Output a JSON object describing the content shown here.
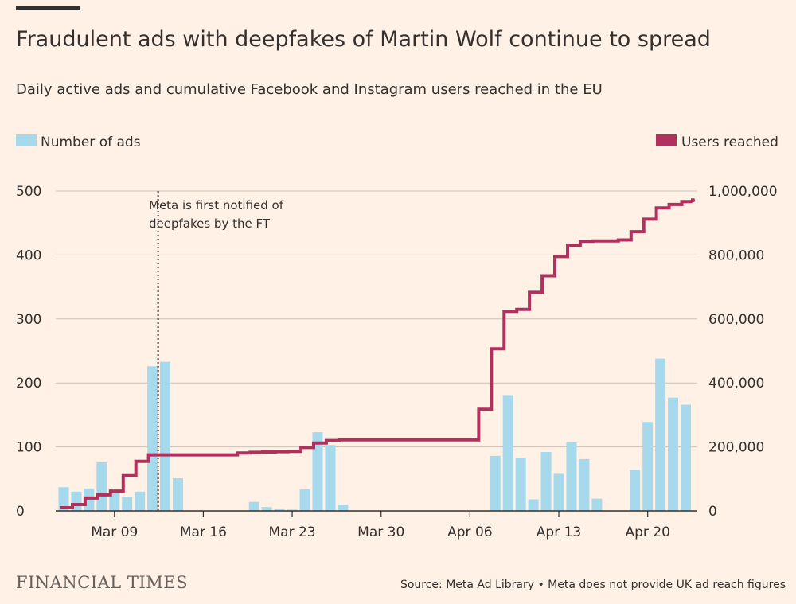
{
  "page": {
    "brand": "FINANCIAL TIMES",
    "source": "Source: Meta Ad Library • Meta does not provide UK ad reach figures"
  },
  "colors": {
    "background": "#FFF1E5",
    "bars": "#A6D9EC",
    "line": "#B0305E",
    "text": "#33302E",
    "grid": "#CCC1B7"
  },
  "chart_data": {
    "type": "bar",
    "title": "Fraudulent ads with deepfakes of Martin Wolf continue to spread",
    "subtitle": "Daily active ads and cumulative Facebook and Instagram users reached in the EU",
    "legend": [
      {
        "label": "Number of ads",
        "kind": "bar",
        "placement": "top-left"
      },
      {
        "label": "Users reached",
        "kind": "line",
        "placement": "top-right"
      }
    ],
    "annotation": {
      "date": "Mar 12",
      "text": [
        "Meta is first notified of",
        "deepfakes by the FT"
      ]
    },
    "x_ticks": [
      "Mar 09",
      "Mar 16",
      "Mar 23",
      "Mar 30",
      "Apr 06",
      "Apr 13",
      "Apr 20"
    ],
    "y_left": {
      "label": "",
      "ylim": [
        0,
        500
      ],
      "ticks": [
        "0",
        "100",
        "200",
        "300",
        "400",
        "500"
      ]
    },
    "y_right": {
      "label": "",
      "ylim": [
        0,
        1000000
      ],
      "ticks": [
        "0",
        "200,000",
        "400,000",
        "600,000",
        "800,000",
        "1,000,000"
      ]
    },
    "grid": true,
    "dates": [
      "Mar 05",
      "Mar 06",
      "Mar 07",
      "Mar 08",
      "Mar 09",
      "Mar 10",
      "Mar 11",
      "Mar 12",
      "Mar 13",
      "Mar 14",
      "Mar 15",
      "Mar 16",
      "Mar 17",
      "Mar 18",
      "Mar 19",
      "Mar 20",
      "Mar 21",
      "Mar 22",
      "Mar 23",
      "Mar 24",
      "Mar 25",
      "Mar 26",
      "Mar 27",
      "Mar 28",
      "Mar 29",
      "Mar 30",
      "Mar 31",
      "Apr 01",
      "Apr 02",
      "Apr 03",
      "Apr 04",
      "Apr 05",
      "Apr 06",
      "Apr 07",
      "Apr 08",
      "Apr 09",
      "Apr 10",
      "Apr 11",
      "Apr 12",
      "Apr 13",
      "Apr 14",
      "Apr 15",
      "Apr 16",
      "Apr 17",
      "Apr 18",
      "Apr 19",
      "Apr 20",
      "Apr 21",
      "Apr 22",
      "Apr 23",
      "Apr 24"
    ],
    "series": [
      {
        "name": "Number of ads",
        "axis": "left",
        "type": "bar",
        "values": [
          37,
          30,
          35,
          76,
          30,
          22,
          30,
          226,
          233,
          51,
          0,
          0,
          0,
          0,
          0,
          14,
          6,
          3,
          2,
          34,
          123,
          103,
          10,
          0,
          0,
          0,
          0,
          0,
          0,
          0,
          0,
          0,
          0,
          0,
          86,
          181,
          83,
          18,
          92,
          58,
          107,
          81,
          19,
          0,
          0,
          64,
          139,
          238,
          177,
          166,
          0
        ]
      },
      {
        "name": "Users reached",
        "axis": "right",
        "type": "line",
        "values": [
          10000,
          20000,
          40000,
          50000,
          62000,
          110000,
          155000,
          175000,
          175000,
          175000,
          175000,
          175000,
          175000,
          175000,
          181000,
          183000,
          184000,
          185000,
          186000,
          198000,
          212000,
          220000,
          222000,
          222000,
          222000,
          222000,
          222000,
          222000,
          222000,
          222000,
          222000,
          222000,
          222000,
          318000,
          507000,
          624000,
          630000,
          683000,
          735000,
          795000,
          830000,
          843000,
          844000,
          844000,
          847000,
          873000,
          912000,
          947000,
          958000,
          967000,
          972000
        ]
      }
    ]
  }
}
